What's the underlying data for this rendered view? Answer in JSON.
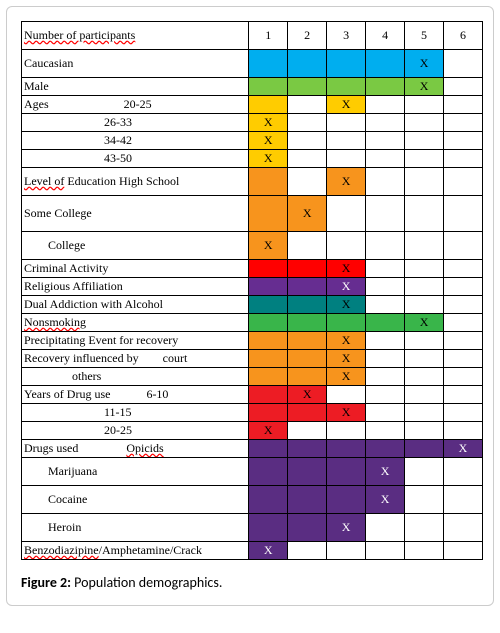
{
  "caption_label": "Figure 2:",
  "caption_text": " Population demographics.",
  "col_headers": [
    "1",
    "2",
    "3",
    "4",
    "5",
    "6"
  ],
  "palette": {
    "blue": "#00aeef",
    "green": "#7ac943",
    "yellow": "#ffcc00",
    "orange": "#f7941d",
    "red": "#ff0000",
    "darkpurple": "#662d91",
    "teal": "#008080",
    "midgreen": "#39b54a",
    "ered": "#ed1c24",
    "purple": "#5a2d82"
  },
  "x": "X",
  "rows": [
    {
      "h": "tall",
      "label_html": "<span class='wavy'>Number of participants</span>",
      "fills": [
        null,
        null,
        null,
        null,
        null,
        null
      ],
      "xs": [
        false,
        false,
        false,
        false,
        false,
        false
      ]
    },
    {
      "h": "tall",
      "label_html": "Caucasian",
      "fills": [
        "blue",
        "blue",
        "blue",
        "blue",
        "blue",
        null
      ],
      "xs": [
        false,
        false,
        false,
        false,
        true,
        false
      ]
    },
    {
      "h": "",
      "label_html": "Male",
      "fills": [
        "green",
        "green",
        "green",
        "green",
        "green",
        null
      ],
      "xs": [
        false,
        false,
        false,
        false,
        true,
        false
      ]
    },
    {
      "h": "",
      "label_html": "Ages&nbsp;&nbsp;&nbsp;&nbsp;&nbsp;&nbsp;&nbsp;&nbsp;&nbsp;&nbsp;&nbsp;&nbsp;&nbsp;&nbsp;&nbsp;&nbsp;&nbsp;&nbsp;&nbsp;&nbsp;&nbsp;&nbsp;&nbsp;&nbsp;&nbsp;20-25",
      "fills": [
        "yellow",
        null,
        "yellow",
        null,
        null,
        null
      ],
      "xs": [
        false,
        false,
        true,
        false,
        false,
        false
      ]
    },
    {
      "h": "",
      "label_html": "<span class='indent3'></span>26-33",
      "fills": [
        "yellow",
        null,
        null,
        null,
        null,
        null
      ],
      "xs": [
        true,
        false,
        false,
        false,
        false,
        false
      ]
    },
    {
      "h": "",
      "label_html": "<span class='indent3'></span>34-42",
      "fills": [
        "yellow",
        null,
        null,
        null,
        null,
        null
      ],
      "xs": [
        true,
        false,
        false,
        false,
        false,
        false
      ]
    },
    {
      "h": "",
      "label_html": "<span class='indent3'></span>43-50",
      "fills": [
        "yellow",
        null,
        null,
        null,
        null,
        null
      ],
      "xs": [
        true,
        false,
        false,
        false,
        false,
        false
      ]
    },
    {
      "h": "tall",
      "label_html": "<span class='wavy'>Level of</span> Education High School",
      "fills": [
        "orange",
        null,
        "orange",
        null,
        null,
        null
      ],
      "xs": [
        false,
        false,
        true,
        false,
        false,
        false
      ]
    },
    {
      "h": "taller",
      "label_html": "Some College",
      "fills": [
        "orange",
        "orange",
        null,
        null,
        null,
        null
      ],
      "xs": [
        false,
        true,
        false,
        false,
        false,
        false
      ]
    },
    {
      "h": "tall",
      "label_html": "<span class='indent'></span>College",
      "fills": [
        "orange",
        null,
        null,
        null,
        null,
        null
      ],
      "xs": [
        true,
        false,
        false,
        false,
        false,
        false
      ]
    },
    {
      "h": "",
      "label_html": "Criminal Activity",
      "fills": [
        "red",
        "red",
        "red",
        null,
        null,
        null
      ],
      "xs": [
        false,
        false,
        true,
        false,
        false,
        false
      ]
    },
    {
      "h": "",
      "label_html": "Religious Affiliation",
      "fills": [
        "darkpurple",
        "darkpurple",
        "darkpurple",
        null,
        null,
        null
      ],
      "xs": [
        false,
        false,
        true,
        false,
        false,
        false
      ]
    },
    {
      "h": "",
      "label_html": "Dual Addiction with Alcohol",
      "fills": [
        "teal",
        "teal",
        "teal",
        null,
        null,
        null
      ],
      "xs": [
        false,
        false,
        true,
        false,
        false,
        false
      ]
    },
    {
      "h": "",
      "label_html": "<span class='wavy'>Nonsmoking</span>",
      "fills": [
        "midgreen",
        "midgreen",
        "midgreen",
        "midgreen",
        "midgreen",
        null
      ],
      "xs": [
        false,
        false,
        false,
        false,
        true,
        false
      ]
    },
    {
      "h": "",
      "label_html": "Precipitating Event for recovery",
      "fills": [
        "orange",
        "orange",
        "orange",
        null,
        null,
        null
      ],
      "xs": [
        false,
        false,
        true,
        false,
        false,
        false
      ]
    },
    {
      "h": "",
      "label_html": "Recovery influenced by&nbsp;&nbsp;&nbsp;&nbsp;&nbsp;&nbsp;&nbsp;&nbsp;court",
      "fills": [
        "orange",
        "orange",
        "orange",
        null,
        null,
        null
      ],
      "xs": [
        false,
        false,
        true,
        false,
        false,
        false
      ]
    },
    {
      "h": "",
      "label_html": "<span class='indent2'></span>others",
      "fills": [
        "orange",
        "orange",
        "orange",
        null,
        null,
        null
      ],
      "xs": [
        false,
        false,
        true,
        false,
        false,
        false
      ]
    },
    {
      "h": "",
      "label_html": "Years of Drug use&nbsp;&nbsp;&nbsp;&nbsp;&nbsp;&nbsp;&nbsp;&nbsp;&nbsp;&nbsp;&nbsp;&nbsp;6-10",
      "fills": [
        "ered",
        "ered",
        null,
        null,
        null,
        null
      ],
      "xs": [
        false,
        true,
        false,
        false,
        false,
        false
      ]
    },
    {
      "h": "",
      "label_html": "<span class='indent3'></span>11-15",
      "fills": [
        "ered",
        "ered",
        "ered",
        null,
        null,
        null
      ],
      "xs": [
        false,
        false,
        true,
        false,
        false,
        false
      ]
    },
    {
      "h": "",
      "label_html": "<span class='indent3'></span>20-25",
      "fills": [
        "ered",
        null,
        null,
        null,
        null,
        null
      ],
      "xs": [
        true,
        false,
        false,
        false,
        false,
        false
      ]
    },
    {
      "h": "",
      "label_html": "Drugs used&nbsp;&nbsp;&nbsp;&nbsp;&nbsp;&nbsp;&nbsp;&nbsp;&nbsp;&nbsp;&nbsp;&nbsp;&nbsp;&nbsp;&nbsp;&nbsp;<span class='wavy'>Opicids</span>",
      "fills": [
        "purple",
        "purple",
        "purple",
        "purple",
        "purple",
        "purple"
      ],
      "xs": [
        false,
        false,
        false,
        false,
        false,
        true
      ]
    },
    {
      "h": "tall",
      "label_html": "<span class='indent'></span>Marijuana",
      "fills": [
        "purple",
        "purple",
        "purple",
        "purple",
        null,
        null
      ],
      "xs": [
        false,
        false,
        false,
        true,
        false,
        false
      ]
    },
    {
      "h": "tall",
      "label_html": "<span class='indent'></span>Cocaine",
      "fills": [
        "purple",
        "purple",
        "purple",
        "purple",
        null,
        null
      ],
      "xs": [
        false,
        false,
        false,
        true,
        false,
        false
      ]
    },
    {
      "h": "tall",
      "label_html": "<span class='indent'></span>Heroin",
      "fills": [
        "purple",
        "purple",
        "purple",
        null,
        null,
        null
      ],
      "xs": [
        false,
        false,
        true,
        false,
        false,
        false
      ]
    },
    {
      "h": "",
      "label_html": "<span class='wavy'>Benzodiazipine</span>/Amphetamine/Crack",
      "fills": [
        "purple",
        null,
        null,
        null,
        null,
        null
      ],
      "xs": [
        true,
        false,
        false,
        false,
        false,
        false
      ]
    }
  ]
}
